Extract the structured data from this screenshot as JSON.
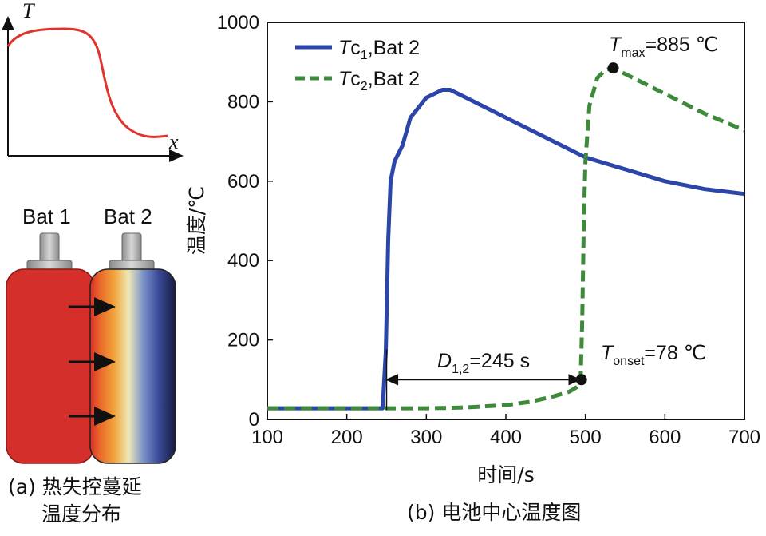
{
  "panel_a": {
    "sketch": {
      "y_label": "T",
      "x_label": "x"
    },
    "battery1_label": "Bat 1",
    "battery2_label": "Bat 2",
    "caption_line1": "(a) 热失控蔓延",
    "caption_line2": "温度分布",
    "colors": {
      "bat1": "#d42f2a",
      "sketch_curve": "#e0332e",
      "arrow": "#111111"
    }
  },
  "panel_b": {
    "caption": "(b) 电池中心温度图",
    "annotations": {
      "tmax": {
        "sym": "T",
        "sub": "max",
        "rest": "=885 ℃"
      },
      "tonset": {
        "sym": "T",
        "sub": "onset",
        "rest": "=78 ℃"
      },
      "delay": {
        "sym": "D",
        "sub": "1,2",
        "rest": "=245 s"
      }
    }
  },
  "chart_data": {
    "type": "line",
    "xlabel": "时间/s",
    "ylabel": "温度/℃",
    "xlim": [
      100,
      700
    ],
    "ylim": [
      0,
      1000
    ],
    "xticks": [
      100,
      200,
      300,
      400,
      500,
      600,
      700
    ],
    "yticks": [
      0,
      200,
      400,
      600,
      800,
      1000
    ],
    "legend_position": "top-left",
    "series": [
      {
        "name_sym": "T",
        "name_sub": "c",
        "name_idx": "1",
        "name_rest": ",Bat 2",
        "color": "#2c45a8",
        "style": "solid",
        "x": [
          100,
          150,
          200,
          245,
          249,
          252,
          255,
          260,
          270,
          280,
          300,
          320,
          330,
          350,
          400,
          450,
          500,
          550,
          600,
          650,
          700
        ],
        "y": [
          28,
          28,
          28,
          28,
          170,
          450,
          600,
          650,
          690,
          760,
          810,
          830,
          830,
          810,
          760,
          710,
          660,
          630,
          600,
          580,
          568
        ]
      },
      {
        "name_sym": "T",
        "name_sub": "c",
        "name_idx": "2",
        "name_rest": ",Bat 2",
        "color": "#3d8a3a",
        "style": "dashed",
        "x": [
          100,
          200,
          300,
          350,
          400,
          430,
          460,
          480,
          490,
          494,
          496,
          498,
          500,
          505,
          515,
          525,
          535,
          560,
          600,
          650,
          700
        ],
        "y": [
          28,
          28,
          28,
          30,
          36,
          44,
          58,
          70,
          82,
          100,
          250,
          500,
          650,
          790,
          860,
          880,
          885,
          860,
          820,
          770,
          728
        ]
      }
    ],
    "markers": [
      {
        "x": 535,
        "y": 885
      },
      {
        "x": 495,
        "y": 100
      }
    ],
    "delay_span": {
      "x_start": 250,
      "x_end": 495,
      "y": 100
    }
  }
}
